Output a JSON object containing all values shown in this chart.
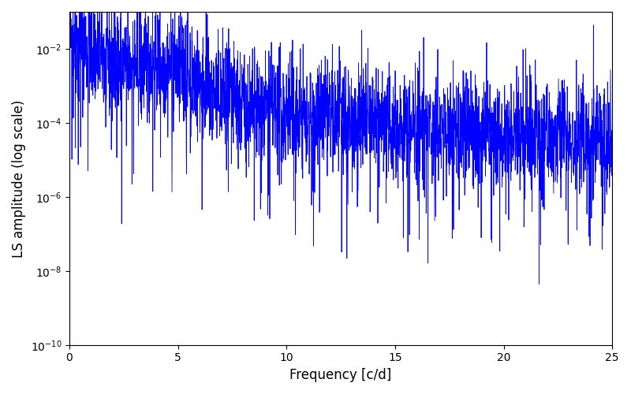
{
  "xlabel": "Frequency [c/d]",
  "ylabel": "LS amplitude (log scale)",
  "xlim": [
    0,
    25
  ],
  "ylim": [
    1e-10,
    0.1
  ],
  "freq_max": 25.0,
  "n_points": 3000,
  "seed": 42,
  "line_color": "blue",
  "line_width": 0.6,
  "figsize": [
    8.0,
    5.0
  ],
  "dpi": 100
}
